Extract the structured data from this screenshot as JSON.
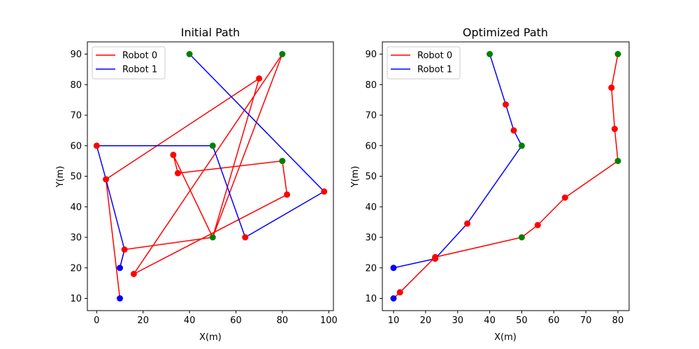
{
  "colors": {
    "robot0": "#ff0000",
    "robot1": "#0000ff",
    "waypoint": "#ff0000",
    "start": "#0000ff",
    "goal": "#008000"
  },
  "chart_data": [
    {
      "type": "line",
      "title": "Initial Path",
      "xlabel": "X(m)",
      "ylabel": "Y(m)",
      "xlim": [
        -4,
        102
      ],
      "ylim": [
        6,
        94
      ],
      "xticks": [
        0,
        20,
        40,
        60,
        80,
        100
      ],
      "yticks": [
        10,
        20,
        30,
        40,
        50,
        60,
        70,
        80,
        90
      ],
      "grid": false,
      "legend_position": "top-left",
      "legend": [
        "Robot 0",
        "Robot 1"
      ],
      "series": [
        {
          "name": "Robot 0",
          "color": "#ff0000",
          "points": [
            [
              10,
              10
            ],
            [
              4,
              49
            ],
            [
              70,
              82
            ],
            [
              50,
              30
            ],
            [
              33,
              57
            ],
            [
              35,
              51
            ],
            [
              80,
              55
            ],
            [
              82,
              44
            ],
            [
              16,
              18
            ],
            [
              80,
              90
            ],
            [
              50,
              30
            ],
            [
              12,
              26
            ],
            [
              10,
              20
            ]
          ]
        },
        {
          "name": "Robot 1",
          "color": "#0000ff",
          "points": [
            [
              10,
              20
            ],
            [
              12,
              26
            ],
            [
              4,
              49
            ],
            [
              0,
              60
            ],
            [
              50,
              60
            ],
            [
              64,
              30
            ],
            [
              98,
              45
            ],
            [
              40,
              90
            ]
          ]
        }
      ],
      "markers": {
        "start": [
          [
            10,
            10
          ],
          [
            10,
            20
          ]
        ],
        "goal": [
          [
            40,
            90
          ],
          [
            80,
            90
          ],
          [
            50,
            60
          ],
          [
            80,
            55
          ],
          [
            50,
            30
          ]
        ],
        "waypoint": [
          [
            4,
            49
          ],
          [
            0,
            60
          ],
          [
            70,
            82
          ],
          [
            33,
            57
          ],
          [
            35,
            51
          ],
          [
            82,
            44
          ],
          [
            16,
            18
          ],
          [
            12,
            26
          ],
          [
            64,
            30
          ],
          [
            98,
            45
          ]
        ]
      }
    },
    {
      "type": "line",
      "title": "Optimized Path",
      "xlabel": "X(m)",
      "ylabel": "Y(m)",
      "xlim": [
        6.5,
        83.5
      ],
      "ylim": [
        6,
        94
      ],
      "xticks": [
        10,
        20,
        30,
        40,
        50,
        60,
        70,
        80
      ],
      "yticks": [
        10,
        20,
        30,
        40,
        50,
        60,
        70,
        80,
        90
      ],
      "grid": false,
      "legend_position": "top-left",
      "legend": [
        "Robot 0",
        "Robot 1"
      ],
      "series": [
        {
          "name": "Robot 0",
          "color": "#ff0000",
          "points": [
            [
              10,
              10
            ],
            [
              12,
              12
            ],
            [
              23,
              23.5
            ],
            [
              50,
              30
            ],
            [
              55,
              34
            ],
            [
              63.5,
              43
            ],
            [
              80,
              55
            ],
            [
              79,
              65.5
            ],
            [
              78,
              79
            ],
            [
              80,
              90
            ]
          ]
        },
        {
          "name": "Robot 1",
          "color": "#0000ff",
          "points": [
            [
              10,
              20
            ],
            [
              23,
              23
            ],
            [
              33,
              34.5
            ],
            [
              50,
              60
            ],
            [
              47.5,
              65
            ],
            [
              45,
              73.5
            ],
            [
              40,
              90
            ]
          ]
        }
      ],
      "markers": {
        "start": [
          [
            10,
            10
          ],
          [
            10,
            20
          ]
        ],
        "goal": [
          [
            40,
            90
          ],
          [
            80,
            90
          ],
          [
            50,
            60
          ],
          [
            80,
            55
          ],
          [
            50,
            30
          ]
        ],
        "waypoint": [
          [
            12,
            12
          ],
          [
            23,
            23.5
          ],
          [
            23,
            23
          ],
          [
            33,
            34.5
          ],
          [
            55,
            34
          ],
          [
            63.5,
            43
          ],
          [
            47.5,
            65
          ],
          [
            45,
            73.5
          ],
          [
            79,
            65.5
          ],
          [
            78,
            79
          ]
        ]
      }
    }
  ]
}
